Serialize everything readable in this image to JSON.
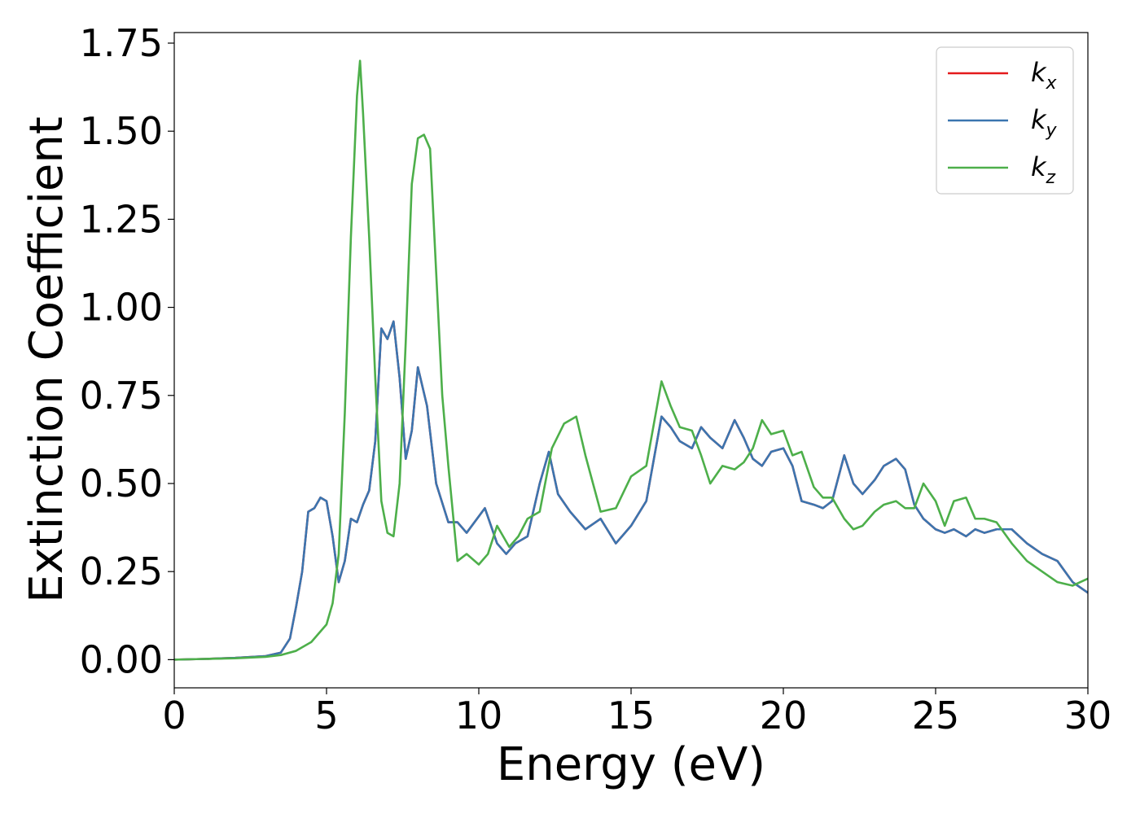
{
  "chart_data": {
    "type": "line",
    "xlabel": "Energy (eV)",
    "ylabel": "Extinction Coefficient",
    "xlim": [
      0,
      30
    ],
    "ylim": [
      -0.08,
      1.78
    ],
    "xticks": [
      "0",
      "5",
      "10",
      "15",
      "20",
      "25",
      "30"
    ],
    "yticks": [
      "0.00",
      "0.25",
      "0.50",
      "0.75",
      "1.00",
      "1.25",
      "1.50",
      "1.75"
    ],
    "grid": false,
    "legend_position": "top-right",
    "series": [
      {
        "name": "k_x",
        "legend_base": "k",
        "legend_sub": "x",
        "color": "#e41a1c",
        "x": [
          0,
          1,
          2,
          3,
          3.5,
          3.8,
          4.0,
          4.2,
          4.4,
          4.6,
          4.8,
          5.0,
          5.2,
          5.4,
          5.6,
          5.8,
          6.0,
          6.2,
          6.4,
          6.6,
          6.8,
          7.0,
          7.2,
          7.4,
          7.6,
          7.8,
          8.0,
          8.3,
          8.6,
          9.0,
          9.3,
          9.6,
          10.2,
          10.6,
          10.9,
          11.2,
          11.6,
          12.0,
          12.3,
          12.6,
          13.0,
          13.5,
          14.0,
          14.5,
          15.0,
          15.5,
          16.0,
          16.3,
          16.6,
          17.0,
          17.3,
          17.6,
          18.0,
          18.4,
          18.7,
          19.0,
          19.3,
          19.6,
          20.0,
          20.3,
          20.6,
          21.0,
          21.3,
          21.6,
          22.0,
          22.3,
          22.6,
          23.0,
          23.3,
          23.7,
          24.0,
          24.3,
          24.6,
          25.0,
          25.3,
          25.6,
          26.0,
          26.3,
          26.6,
          27.0,
          27.5,
          28.0,
          28.5,
          29.0,
          29.5,
          30.0
        ],
        "values": [
          0.0,
          0.002,
          0.005,
          0.01,
          0.02,
          0.06,
          0.15,
          0.25,
          0.42,
          0.43,
          0.46,
          0.45,
          0.35,
          0.22,
          0.28,
          0.4,
          0.39,
          0.44,
          0.48,
          0.62,
          0.94,
          0.91,
          0.96,
          0.8,
          0.57,
          0.65,
          0.83,
          0.72,
          0.5,
          0.39,
          0.39,
          0.36,
          0.43,
          0.33,
          0.3,
          0.33,
          0.35,
          0.5,
          0.59,
          0.47,
          0.42,
          0.37,
          0.4,
          0.33,
          0.38,
          0.45,
          0.69,
          0.66,
          0.62,
          0.6,
          0.66,
          0.63,
          0.6,
          0.68,
          0.63,
          0.57,
          0.55,
          0.59,
          0.6,
          0.55,
          0.45,
          0.44,
          0.43,
          0.45,
          0.58,
          0.5,
          0.47,
          0.51,
          0.55,
          0.57,
          0.54,
          0.44,
          0.4,
          0.37,
          0.36,
          0.37,
          0.35,
          0.37,
          0.36,
          0.37,
          0.37,
          0.33,
          0.3,
          0.28,
          0.22,
          0.19
        ]
      },
      {
        "name": "k_y",
        "legend_base": "k",
        "legend_sub": "y",
        "color": "#3b75af",
        "x": [
          0,
          1,
          2,
          3,
          3.5,
          3.8,
          4.0,
          4.2,
          4.4,
          4.6,
          4.8,
          5.0,
          5.2,
          5.4,
          5.6,
          5.8,
          6.0,
          6.2,
          6.4,
          6.6,
          6.8,
          7.0,
          7.2,
          7.4,
          7.6,
          7.8,
          8.0,
          8.3,
          8.6,
          9.0,
          9.3,
          9.6,
          10.2,
          10.6,
          10.9,
          11.2,
          11.6,
          12.0,
          12.3,
          12.6,
          13.0,
          13.5,
          14.0,
          14.5,
          15.0,
          15.5,
          16.0,
          16.3,
          16.6,
          17.0,
          17.3,
          17.6,
          18.0,
          18.4,
          18.7,
          19.0,
          19.3,
          19.6,
          20.0,
          20.3,
          20.6,
          21.0,
          21.3,
          21.6,
          22.0,
          22.3,
          22.6,
          23.0,
          23.3,
          23.7,
          24.0,
          24.3,
          24.6,
          25.0,
          25.3,
          25.6,
          26.0,
          26.3,
          26.6,
          27.0,
          27.5,
          28.0,
          28.5,
          29.0,
          29.5,
          30.0
        ],
        "values": [
          0.0,
          0.002,
          0.005,
          0.01,
          0.02,
          0.06,
          0.15,
          0.25,
          0.42,
          0.43,
          0.46,
          0.45,
          0.35,
          0.22,
          0.28,
          0.4,
          0.39,
          0.44,
          0.48,
          0.62,
          0.94,
          0.91,
          0.96,
          0.8,
          0.57,
          0.65,
          0.83,
          0.72,
          0.5,
          0.39,
          0.39,
          0.36,
          0.43,
          0.33,
          0.3,
          0.33,
          0.35,
          0.5,
          0.59,
          0.47,
          0.42,
          0.37,
          0.4,
          0.33,
          0.38,
          0.45,
          0.69,
          0.66,
          0.62,
          0.6,
          0.66,
          0.63,
          0.6,
          0.68,
          0.63,
          0.57,
          0.55,
          0.59,
          0.6,
          0.55,
          0.45,
          0.44,
          0.43,
          0.45,
          0.58,
          0.5,
          0.47,
          0.51,
          0.55,
          0.57,
          0.54,
          0.44,
          0.4,
          0.37,
          0.36,
          0.37,
          0.35,
          0.37,
          0.36,
          0.37,
          0.37,
          0.33,
          0.3,
          0.28,
          0.22,
          0.19
        ]
      },
      {
        "name": "k_z",
        "legend_base": "k",
        "legend_sub": "z",
        "color": "#4daf4a",
        "x": [
          0,
          1,
          2,
          3,
          3.5,
          4.0,
          4.5,
          5.0,
          5.2,
          5.4,
          5.6,
          5.8,
          6.0,
          6.1,
          6.2,
          6.4,
          6.6,
          6.8,
          7.0,
          7.2,
          7.4,
          7.6,
          7.8,
          8.0,
          8.2,
          8.4,
          8.6,
          8.8,
          9.0,
          9.3,
          9.6,
          10.0,
          10.3,
          10.6,
          11.0,
          11.3,
          11.6,
          12.0,
          12.4,
          12.8,
          13.2,
          13.5,
          14.0,
          14.5,
          15.0,
          15.5,
          16.0,
          16.3,
          16.6,
          17.0,
          17.3,
          17.6,
          18.0,
          18.4,
          18.7,
          19.0,
          19.3,
          19.6,
          20.0,
          20.3,
          20.6,
          21.0,
          21.3,
          21.6,
          22.0,
          22.3,
          22.6,
          23.0,
          23.3,
          23.7,
          24.0,
          24.3,
          24.6,
          25.0,
          25.3,
          25.6,
          26.0,
          26.3,
          26.6,
          27.0,
          27.5,
          28.0,
          28.5,
          29.0,
          29.5,
          30.0
        ],
        "values": [
          0.0,
          0.002,
          0.004,
          0.008,
          0.013,
          0.025,
          0.05,
          0.1,
          0.16,
          0.3,
          0.7,
          1.2,
          1.6,
          1.7,
          1.55,
          1.2,
          0.8,
          0.45,
          0.36,
          0.35,
          0.5,
          0.9,
          1.35,
          1.48,
          1.49,
          1.45,
          1.1,
          0.75,
          0.55,
          0.28,
          0.3,
          0.27,
          0.3,
          0.38,
          0.32,
          0.35,
          0.4,
          0.42,
          0.6,
          0.67,
          0.69,
          0.58,
          0.42,
          0.43,
          0.52,
          0.55,
          0.79,
          0.72,
          0.66,
          0.65,
          0.58,
          0.5,
          0.55,
          0.54,
          0.56,
          0.6,
          0.68,
          0.64,
          0.65,
          0.58,
          0.59,
          0.49,
          0.46,
          0.46,
          0.4,
          0.37,
          0.38,
          0.42,
          0.44,
          0.45,
          0.43,
          0.43,
          0.5,
          0.45,
          0.38,
          0.45,
          0.46,
          0.4,
          0.4,
          0.39,
          0.33,
          0.28,
          0.25,
          0.22,
          0.21,
          0.23
        ]
      }
    ]
  }
}
